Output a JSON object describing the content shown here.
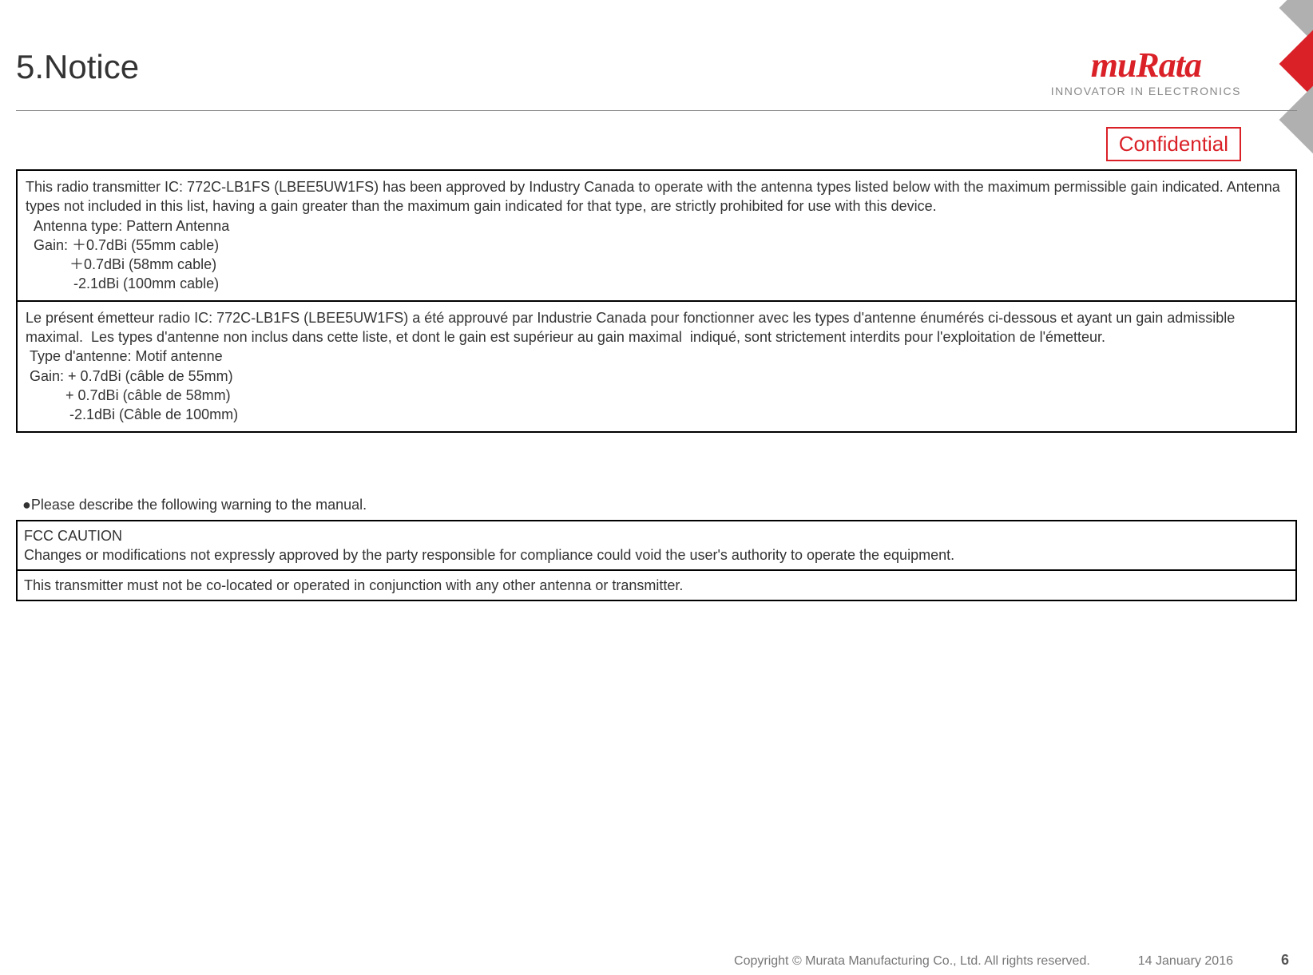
{
  "header": {
    "title": "5.Notice",
    "logo_text": "muRata",
    "logo_tagline": "INNOVATOR IN ELECTRONICS",
    "confidential_label": "Confidential",
    "brand_color": "#da2128",
    "tagline_color": "#888888"
  },
  "notice_box": {
    "sections": [
      {
        "text": "This radio transmitter IC: 772C-LB1FS (LBEE5UW1FS) has been approved by Industry Canada to operate with the antenna types listed below with the maximum permissible gain indicated. Antenna types not included in this list, having a gain greater than the maximum gain indicated for that type, are strictly prohibited for use with this device.\n  Antenna type: Pattern Antenna\n  Gain: ＋0.7dBi (55mm cable)\n           ＋0.7dBi (58mm cable)\n            -2.1dBi (100mm cable)"
      },
      {
        "text": "Le présent émetteur radio IC: 772C-LB1FS (LBEE5UW1FS) a été approuvé par Industrie Canada pour fonctionner avec les types d'antenne énumérés ci-dessous et ayant un gain admissible maximal.  Les types d'antenne non inclus dans cette liste, et dont le gain est supérieur au gain maximal  indiqué, sont strictement interdits pour l'exploitation de l'émetteur.\n Type d'antenne: Motif antenne\n Gain: + 0.7dBi (câble de 55mm)\n          + 0.7dBi (câble de 58mm)\n           -2.1dBi (Câble de 100mm)"
      }
    ]
  },
  "warning_heading": "●Please describe the following warning to the manual.",
  "warning_box": {
    "sections": [
      {
        "text": "FCC CAUTION\nChanges or modifications not expressly approved by the party responsible for compliance could void the user's authority to operate the equipment."
      },
      {
        "text": "This transmitter must not be co-located or operated in conjunction with any other antenna or transmitter."
      }
    ]
  },
  "footer": {
    "copyright": "Copyright © Murata Manufacturing Co., Ltd. All rights reserved.",
    "date": "14 January 2016",
    "page_number": "6"
  },
  "styling": {
    "body_font_color": "#333333",
    "body_font_size_pt": 14,
    "border_color": "#000000",
    "background_color": "#ffffff"
  }
}
